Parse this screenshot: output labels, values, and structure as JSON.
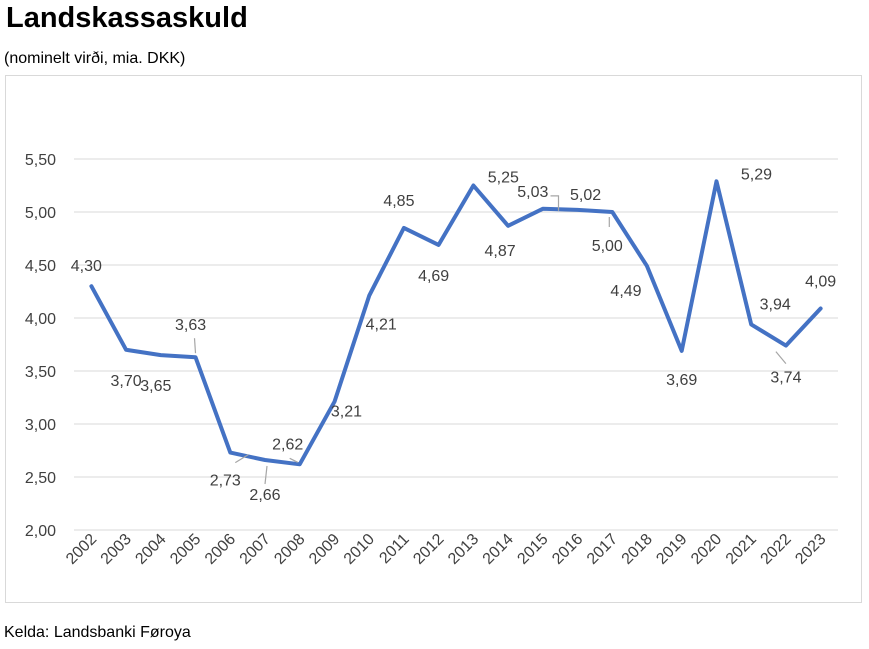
{
  "title": "Landskassaskuld",
  "subtitle": "(nominelt virði, mia. DKK)",
  "source": "Kelda: Landsbanki Føroya",
  "colors": {
    "line": "#4472c4",
    "grid": "#d9d9d9",
    "leader": "#a6a6a6",
    "text": "#404040"
  },
  "chart_data": {
    "type": "line",
    "title": "Landskassaskuld",
    "subtitle": "(nominelt virði, mia. DKK)",
    "xlabel": "",
    "ylabel": "",
    "ylim": [
      2.0,
      5.5
    ],
    "yticks": [
      "2,00",
      "2,50",
      "3,00",
      "3,50",
      "4,00",
      "4,50",
      "5,00",
      "5,50"
    ],
    "ytick_values": [
      2.0,
      2.5,
      3.0,
      3.5,
      4.0,
      4.5,
      5.0,
      5.5
    ],
    "grid": true,
    "legend": "none",
    "categories": [
      "2002",
      "2003",
      "2004",
      "2005",
      "2006",
      "2007",
      "2008",
      "2009",
      "2010",
      "2011",
      "2012",
      "2013",
      "2014",
      "2015",
      "2016",
      "2017",
      "2018",
      "2019",
      "2020",
      "2021",
      "2022",
      "2023"
    ],
    "values": [
      4.3,
      3.7,
      3.65,
      3.63,
      2.73,
      2.66,
      2.62,
      3.21,
      4.21,
      4.85,
      4.69,
      5.25,
      4.87,
      5.03,
      5.02,
      5.0,
      4.49,
      3.69,
      5.29,
      3.94,
      3.74,
      4.09
    ],
    "labels": [
      "4,30",
      "3,70",
      "3,65",
      "3,63",
      "2,73",
      "2,66",
      "2,62",
      "3,21",
      "4,21",
      "4,85",
      "4,69",
      "5,25",
      "4,87",
      "5,03",
      "5,02",
      "5,00",
      "4,49",
      "3,69",
      "5,29",
      "3,94",
      "3,74",
      "4,09"
    ]
  }
}
